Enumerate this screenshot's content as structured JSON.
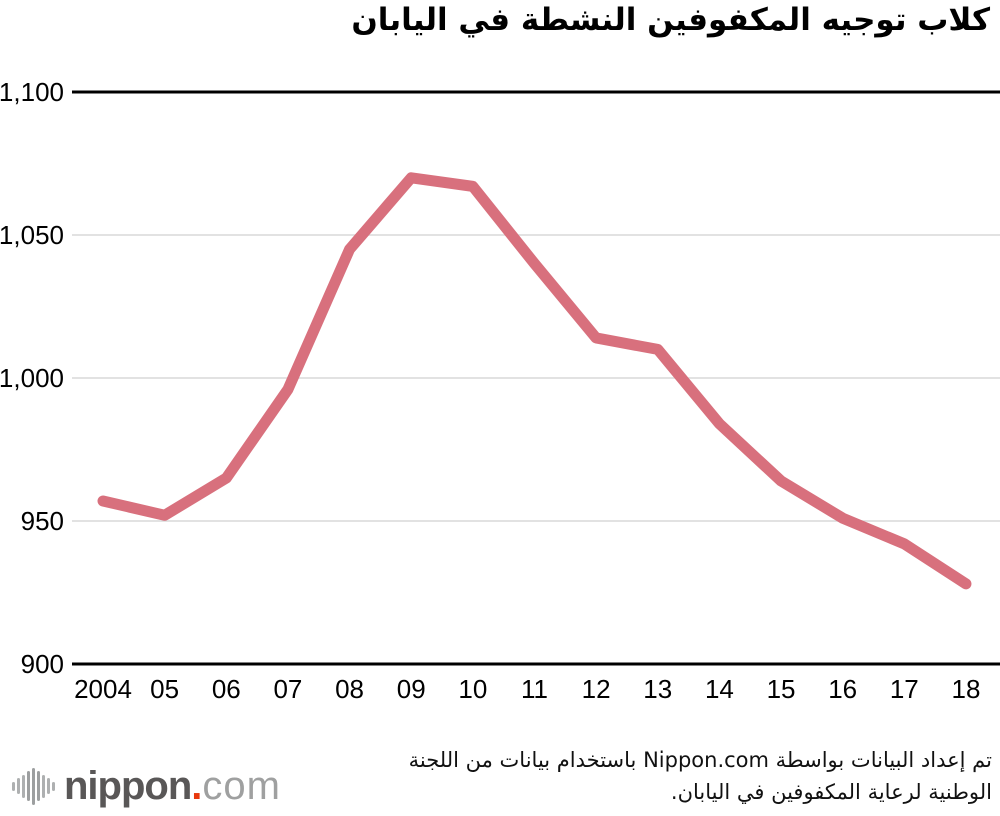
{
  "title": "كلاب توجيه المكفوفين النشطة في اليابان",
  "chart_data": {
    "type": "line",
    "title": "كلاب توجيه المكفوفين النشطة في اليابان",
    "x": [
      2004,
      2005,
      2006,
      2007,
      2008,
      2009,
      2010,
      2011,
      2012,
      2013,
      2014,
      2015,
      2016,
      2017,
      2018
    ],
    "x_tick_labels": [
      "2004",
      "05",
      "06",
      "07",
      "08",
      "09",
      "10",
      "11",
      "12",
      "13",
      "14",
      "15",
      "16",
      "17",
      "18"
    ],
    "values": [
      957,
      952,
      965,
      996,
      1045,
      1070,
      1067,
      1040,
      1014,
      1010,
      984,
      964,
      951,
      942,
      928
    ],
    "ylim": [
      900,
      1100
    ],
    "y_tick_values": [
      1100,
      1050,
      1000,
      950,
      900
    ],
    "y_tick_labels": [
      "1,100",
      "1,050",
      "1,000",
      "950",
      "900"
    ],
    "xlabel": "",
    "ylabel": "",
    "grid": true,
    "legend": false,
    "line_color": "#d8707d",
    "grid_color": "#d9d9d9",
    "axis_color": "#000000"
  },
  "footer": {
    "source_line1": "تم إعداد البيانات بواسطة Nippon.com باستخدام بيانات من اللجنة",
    "source_line2": "الوطنية لرعاية المكفوفين في اليابان.",
    "logo": {
      "brand": "nippon",
      "separator": ".",
      "tld": "com"
    }
  }
}
